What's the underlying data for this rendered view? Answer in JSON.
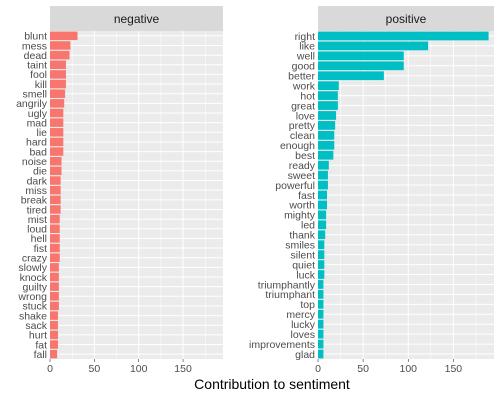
{
  "chart_data": {
    "type": "bar",
    "orientation": "horizontal",
    "xlabel": "Contribution to sentiment",
    "xlim": [
      0,
      195
    ],
    "xticks": [
      0,
      50,
      100,
      150
    ],
    "grid": true,
    "panels": [
      {
        "name": "negative",
        "color": "#f8766d",
        "categories": [
          "blunt",
          "mess",
          "dead",
          "taint",
          "fool",
          "kill",
          "smell",
          "angrily",
          "ugly",
          "mad",
          "lie",
          "hard",
          "bad",
          "noise",
          "die",
          "dark",
          "miss",
          "break",
          "tired",
          "mist",
          "loud",
          "hell",
          "fist",
          "crazy",
          "slowly",
          "knock",
          "guilty",
          "wrong",
          "stuck",
          "shake",
          "sack",
          "hurt",
          "fat",
          "fall"
        ],
        "values": [
          31,
          23,
          22,
          18,
          18,
          18,
          17,
          16,
          15,
          15,
          15,
          15,
          15,
          13,
          13,
          12,
          12,
          12,
          12,
          11,
          11,
          11,
          11,
          11,
          10,
          10,
          10,
          10,
          10,
          9,
          9,
          9,
          9,
          8
        ]
      },
      {
        "name": "positive",
        "color": "#00bfc4",
        "categories": [
          "right",
          "like",
          "well",
          "good",
          "better",
          "work",
          "hot",
          "great",
          "love",
          "pretty",
          "clean",
          "enough",
          "best",
          "ready",
          "sweet",
          "powerful",
          "fast",
          "worth",
          "mighty",
          "led",
          "thank",
          "smiles",
          "silent",
          "quiet",
          "luck",
          "triumphantly",
          "triumphant",
          "top",
          "mercy",
          "lucky",
          "loves",
          "improvements",
          "glad"
        ],
        "values": [
          189,
          122,
          95,
          95,
          73,
          23,
          22,
          22,
          20,
          19,
          18,
          18,
          17,
          12,
          11,
          11,
          10,
          10,
          9,
          9,
          8,
          7,
          7,
          7,
          7,
          6,
          6,
          6,
          6,
          6,
          6,
          6,
          6
        ]
      }
    ]
  }
}
